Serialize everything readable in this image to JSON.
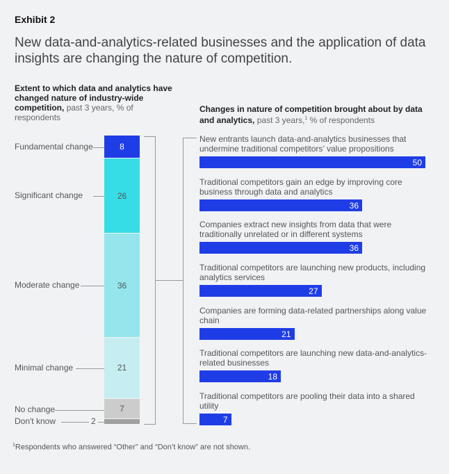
{
  "exhibit": "Exhibit 2",
  "title": "New data-and-analytics-related businesses and the application of data insights are changing the nature of competition.",
  "footnote": {
    "marker": "1",
    "text": "Respondents who answered “Other” and “Don’t know” are not shown."
  },
  "chart_data": [
    {
      "type": "bar",
      "stacked": true,
      "title_bold": "Extent to which data and analytics have changed nature of industry-wide competition,",
      "title_rest": "past 3 years, % of respondents",
      "categories": [
        "Fundamental change",
        "Significant change",
        "Moderate change",
        "Minimal change",
        "No change",
        "Don't know"
      ],
      "values": [
        8,
        26,
        36,
        21,
        7,
        2
      ],
      "colors": [
        "#1f3de6",
        "#36dde6",
        "#94e6ec",
        "#c6eef2",
        "#cccccc",
        "#a0a0a0"
      ]
    },
    {
      "type": "bar",
      "orientation": "horizontal",
      "title_bold": "Changes in nature of competition brought about by data and analytics,",
      "title_rest": "past 3 years,",
      "title_sup": "1",
      "title_tail": "% of respondents",
      "categories": [
        "New entrants launch data-and-analytics businesses that undermine traditional competitors’ value propositions",
        "Traditional competitors gain an edge by improving core business through data and analytics",
        "Companies extract new insights from data that were traditionally unrelated or in different systems",
        "Traditional competitors are launching new products, including analytics services",
        "Companies are forming data-related partnerships along value chain",
        "Traditional competitors are launching new data-and-analytics-related businesses",
        "Traditional competitors are pooling their data into a shared utility"
      ],
      "values": [
        50,
        36,
        36,
        27,
        21,
        18,
        7
      ],
      "color": "#1f3de6"
    }
  ]
}
